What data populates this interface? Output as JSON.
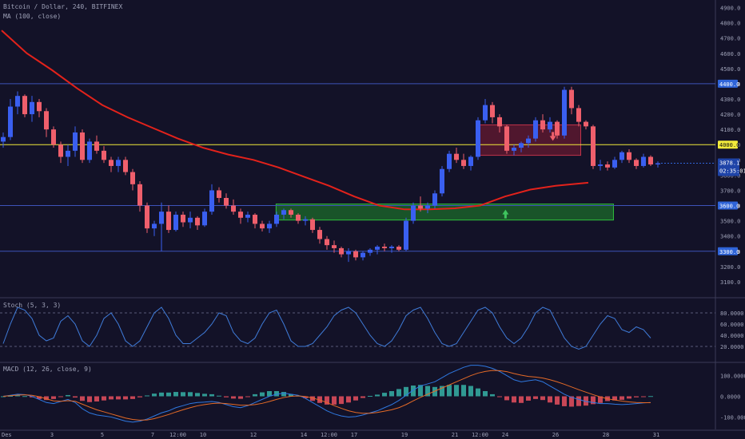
{
  "title": "Bitcoin / Dollar, 240, BITFINEX",
  "ma_label": "MA (100, close)",
  "stoch_label": "Stoch (5, 3, 3)",
  "macd_label": "MACD (12, 26, close, 9)",
  "colors": {
    "background": "#131228",
    "up": "#3a5ff0",
    "down": "#ef5f6c",
    "ma": "#e3221b",
    "yellow_line": "#f2ea3b",
    "blue_line": "#3d53b8",
    "stoch": "#3f7bd8",
    "macd_line": "#2f78e0",
    "signal_line": "#e46a27",
    "hist_pos": "#36b2a6",
    "hist_neg": "#e8505e",
    "resistance_zone": "#9c1f36",
    "support_zone": "#1f8a2a",
    "label_bg": "#2f64d8"
  },
  "chart_data": [
    {
      "type": "candlestick",
      "title": "Bitcoin / Dollar, 240, BITFINEX",
      "ylim": [
        3000,
        4950
      ],
      "y_ticks": [
        "3100.0",
        "3200.0",
        "3300.0",
        "3400.0",
        "3500.0",
        "3600.0",
        "3700.0",
        "3800.0",
        "3900.0",
        "4000.0",
        "4100.0",
        "4200.0",
        "4300.0",
        "4400.0",
        "4500.0",
        "4600.0",
        "4700.0",
        "4800.0",
        "4900.0"
      ],
      "x_ticks": [
        {
          "label": "Des",
          "pos": 0
        },
        {
          "label": "3",
          "pos": 2
        },
        {
          "label": "5",
          "pos": 4
        },
        {
          "label": "7",
          "pos": 6
        },
        {
          "label": "12:00",
          "pos": 7
        },
        {
          "label": "10",
          "pos": 8
        },
        {
          "label": "12",
          "pos": 10
        },
        {
          "label": "14",
          "pos": 12
        },
        {
          "label": "12:00",
          "pos": 13
        },
        {
          "label": "17",
          "pos": 14
        },
        {
          "label": "19",
          "pos": 16
        },
        {
          "label": "21",
          "pos": 18
        },
        {
          "label": "12:00",
          "pos": 19
        },
        {
          "label": "24",
          "pos": 20
        },
        {
          "label": "26",
          "pos": 22
        },
        {
          "label": "28",
          "pos": 24
        },
        {
          "label": "31",
          "pos": 26
        }
      ],
      "horizontal_levels": [
        {
          "value": 4400,
          "label": "4400.0",
          "color": "blue"
        },
        {
          "value": 4000,
          "label": "4000.0",
          "color": "yellow"
        },
        {
          "value": 3600,
          "label": "3600.0",
          "color": "blue"
        },
        {
          "value": 3300,
          "label": "3300.0",
          "color": "blue"
        }
      ],
      "price_label": {
        "value": 3878.1,
        "text": "3878.1",
        "countdown": "02:35:01"
      },
      "zones": [
        {
          "kind": "resistance",
          "start": 18.9,
          "end": 23.0,
          "top": 4130,
          "bottom": 3930,
          "arrow": "down"
        },
        {
          "kind": "support",
          "start": 10.9,
          "end": 24.3,
          "top": 3610,
          "bottom": 3505,
          "arrow": "up"
        }
      ],
      "ma_series": {
        "name": "MA (100, close)",
        "x": [
          0,
          1,
          2,
          3,
          4,
          5,
          6,
          7,
          8,
          9,
          10,
          11,
          12,
          13,
          14,
          15,
          16,
          17,
          18,
          19,
          20,
          21,
          22,
          23.3
        ],
        "y": [
          4750,
          4600,
          4490,
          4370,
          4260,
          4180,
          4110,
          4040,
          3980,
          3935,
          3900,
          3850,
          3790,
          3730,
          3660,
          3600,
          3575,
          3575,
          3582,
          3600,
          3660,
          3705,
          3730,
          3750
        ]
      },
      "candles": [
        [
          4020,
          4080,
          3980,
          4050
        ],
        [
          4050,
          4300,
          4030,
          4250
        ],
        [
          4250,
          4350,
          4200,
          4320
        ],
        [
          4320,
          4330,
          4180,
          4200
        ],
        [
          4200,
          4320,
          4150,
          4280
        ],
        [
          4280,
          4300,
          4180,
          4220
        ],
        [
          4220,
          4240,
          4050,
          4100
        ],
        [
          4100,
          4120,
          3980,
          4000
        ],
        [
          4000,
          4020,
          3880,
          3920
        ],
        [
          3920,
          4000,
          3860,
          3960
        ],
        [
          3960,
          4120,
          3920,
          4080
        ],
        [
          4080,
          4100,
          3880,
          3900
        ],
        [
          3900,
          4040,
          3880,
          4020
        ],
        [
          4020,
          4060,
          3940,
          3960
        ],
        [
          3960,
          3990,
          3880,
          3900
        ],
        [
          3900,
          3920,
          3820,
          3860
        ],
        [
          3860,
          3920,
          3820,
          3900
        ],
        [
          3900,
          3920,
          3800,
          3820
        ],
        [
          3820,
          3840,
          3700,
          3740
        ],
        [
          3740,
          3760,
          3560,
          3600
        ],
        [
          3600,
          3620,
          3420,
          3450
        ],
        [
          3450,
          3500,
          3400,
          3480
        ],
        [
          3480,
          3620,
          3300,
          3560
        ],
        [
          3560,
          3600,
          3420,
          3440
        ],
        [
          3440,
          3560,
          3430,
          3540
        ],
        [
          3540,
          3560,
          3460,
          3490
        ],
        [
          3490,
          3560,
          3450,
          3520
        ],
        [
          3520,
          3530,
          3440,
          3470
        ],
        [
          3470,
          3580,
          3460,
          3560
        ],
        [
          3560,
          3740,
          3540,
          3700
        ],
        [
          3700,
          3720,
          3620,
          3650
        ],
        [
          3650,
          3680,
          3580,
          3600
        ],
        [
          3600,
          3640,
          3540,
          3560
        ],
        [
          3560,
          3580,
          3480,
          3520
        ],
        [
          3520,
          3560,
          3490,
          3540
        ],
        [
          3540,
          3550,
          3450,
          3480
        ],
        [
          3480,
          3500,
          3430,
          3450
        ],
        [
          3450,
          3500,
          3420,
          3480
        ],
        [
          3480,
          3560,
          3460,
          3540
        ],
        [
          3540,
          3580,
          3510,
          3570
        ],
        [
          3570,
          3580,
          3520,
          3540
        ],
        [
          3540,
          3550,
          3480,
          3500
        ],
        [
          3500,
          3530,
          3470,
          3510
        ],
        [
          3510,
          3520,
          3420,
          3440
        ],
        [
          3440,
          3460,
          3350,
          3380
        ],
        [
          3380,
          3400,
          3310,
          3340
        ],
        [
          3340,
          3370,
          3290,
          3320
        ],
        [
          3320,
          3330,
          3260,
          3280
        ],
        [
          3280,
          3320,
          3230,
          3300
        ],
        [
          3300,
          3310,
          3240,
          3260
        ],
        [
          3260,
          3300,
          3240,
          3290
        ],
        [
          3290,
          3320,
          3270,
          3310
        ],
        [
          3310,
          3340,
          3280,
          3330
        ],
        [
          3330,
          3350,
          3300,
          3320
        ],
        [
          3320,
          3340,
          3290,
          3330
        ],
        [
          3330,
          3340,
          3300,
          3310
        ],
        [
          3310,
          3520,
          3300,
          3500
        ],
        [
          3500,
          3620,
          3480,
          3600
        ],
        [
          3600,
          3660,
          3560,
          3580
        ],
        [
          3580,
          3620,
          3550,
          3600
        ],
        [
          3600,
          3700,
          3580,
          3680
        ],
        [
          3680,
          3860,
          3660,
          3840
        ],
        [
          3840,
          3960,
          3820,
          3940
        ],
        [
          3940,
          3980,
          3880,
          3900
        ],
        [
          3900,
          3940,
          3840,
          3860
        ],
        [
          3860,
          3930,
          3830,
          3920
        ],
        [
          3920,
          4180,
          3900,
          4160
        ],
        [
          4160,
          4300,
          4140,
          4260
        ],
        [
          4260,
          4280,
          4140,
          4180
        ],
        [
          4180,
          4200,
          4080,
          4120
        ],
        [
          4120,
          4130,
          3940,
          3960
        ],
        [
          3960,
          4000,
          3930,
          3980
        ],
        [
          3980,
          4020,
          3950,
          4010
        ],
        [
          4010,
          4060,
          3980,
          4040
        ],
        [
          4040,
          4180,
          4020,
          4160
        ],
        [
          4160,
          4200,
          4080,
          4100
        ],
        [
          4100,
          4180,
          4080,
          4150
        ],
        [
          4150,
          4160,
          4040,
          4060
        ],
        [
          4060,
          4380,
          4040,
          4360
        ],
        [
          4360,
          4380,
          4200,
          4240
        ],
        [
          4240,
          4260,
          4120,
          4150
        ],
        [
          4150,
          4160,
          4100,
          4120
        ],
        [
          4120,
          4130,
          3840,
          3860
        ],
        [
          3860,
          3900,
          3830,
          3870
        ],
        [
          3870,
          3890,
          3830,
          3850
        ],
        [
          3850,
          3920,
          3840,
          3900
        ],
        [
          3900,
          3960,
          3880,
          3950
        ],
        [
          3950,
          3970,
          3880,
          3900
        ],
        [
          3900,
          3910,
          3840,
          3860
        ],
        [
          3860,
          3940,
          3850,
          3920
        ],
        [
          3920,
          3930,
          3860,
          3870
        ],
        [
          3870,
          3890,
          3850,
          3878
        ]
      ]
    },
    {
      "type": "line",
      "title": "Stoch (5, 3, 3)",
      "ylim": [
        0,
        100
      ],
      "y_ticks": [
        "20.0000",
        "40.0000",
        "60.0000",
        "80.0000"
      ],
      "reference_lines": [
        20,
        80
      ],
      "series": [
        {
          "name": "Stoch (5, 3, 3)",
          "values": [
            25,
            60,
            90,
            85,
            70,
            40,
            30,
            35,
            65,
            75,
            60,
            30,
            20,
            40,
            70,
            80,
            60,
            30,
            20,
            30,
            55,
            80,
            90,
            70,
            40,
            25,
            25,
            35,
            45,
            60,
            80,
            75,
            45,
            30,
            25,
            35,
            60,
            80,
            85,
            60,
            30,
            20,
            20,
            25,
            40,
            55,
            75,
            85,
            90,
            80,
            60,
            40,
            25,
            20,
            30,
            50,
            75,
            85,
            90,
            70,
            45,
            25,
            20,
            25,
            45,
            65,
            85,
            90,
            80,
            55,
            35,
            25,
            35,
            55,
            80,
            90,
            85,
            60,
            35,
            20,
            15,
            20,
            40,
            60,
            75,
            70,
            50,
            45,
            55,
            50,
            35
          ]
        }
      ]
    },
    {
      "type": "bar+line",
      "title": "MACD (12, 26, close, 9)",
      "ylim": [
        -160,
        160
      ],
      "y_ticks": [
        "100.0000",
        "0.0000",
        "-100.0000"
      ],
      "series": [
        {
          "name": "MACD",
          "values": [
            0,
            5,
            10,
            8,
            0,
            -15,
            -30,
            -35,
            -25,
            -15,
            -30,
            -60,
            -80,
            -90,
            -95,
            -100,
            -110,
            -120,
            -125,
            -120,
            -110,
            -95,
            -80,
            -70,
            -55,
            -45,
            -35,
            -30,
            -28,
            -25,
            -30,
            -40,
            -50,
            -55,
            -45,
            -30,
            -15,
            0,
            10,
            15,
            10,
            5,
            -10,
            -30,
            -50,
            -70,
            -85,
            -95,
            -100,
            -98,
            -90,
            -80,
            -70,
            -55,
            -40,
            -20,
            5,
            30,
            50,
            60,
            70,
            90,
            110,
            125,
            140,
            150,
            150,
            145,
            135,
            120,
            100,
            80,
            70,
            75,
            80,
            70,
            50,
            30,
            10,
            -5,
            -15,
            -25,
            -30,
            -35,
            -35,
            -38,
            -40,
            -38,
            -35,
            -32,
            -30
          ]
        },
        {
          "name": "Signal",
          "values": [
            0,
            3,
            6,
            7,
            5,
            -2,
            -12,
            -22,
            -24,
            -21,
            -24,
            -38,
            -52,
            -65,
            -75,
            -85,
            -95,
            -105,
            -112,
            -115,
            -114,
            -108,
            -98,
            -88,
            -76,
            -65,
            -55,
            -46,
            -40,
            -35,
            -33,
            -35,
            -39,
            -43,
            -43,
            -40,
            -34,
            -25,
            -15,
            -6,
            0,
            2,
            -1,
            -8,
            -18,
            -30,
            -45,
            -58,
            -70,
            -78,
            -82,
            -82,
            -78,
            -72,
            -65,
            -55,
            -40,
            -22,
            -5,
            10,
            25,
            40,
            55,
            70,
            85,
            100,
            112,
            120,
            125,
            124,
            119,
            110,
            102,
            96,
            93,
            88,
            80,
            70,
            58,
            45,
            32,
            20,
            8,
            -3,
            -12,
            -18,
            -23,
            -27,
            -30,
            -31,
            -31
          ]
        }
      ]
    }
  ]
}
